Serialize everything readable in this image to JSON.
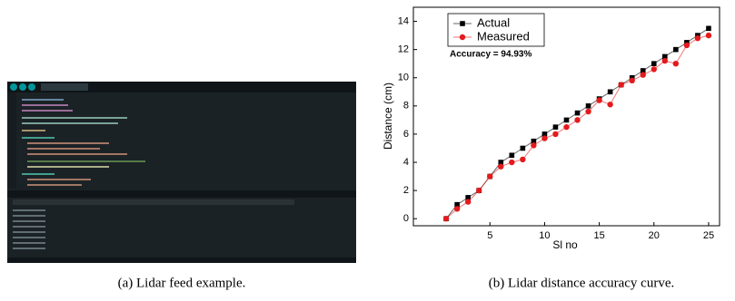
{
  "captions": [
    "(a) Lidar feed example.",
    "(b) Lidar distance accuracy curve."
  ],
  "chart_data": {
    "type": "line",
    "xlabel": "Sl no",
    "ylabel": "Distance (cm)",
    "annotation": "Accuracy = 94.93%",
    "x": [
      1,
      2,
      3,
      4,
      5,
      6,
      7,
      8,
      9,
      10,
      11,
      12,
      13,
      14,
      15,
      16,
      17,
      18,
      19,
      20,
      21,
      22,
      23,
      24,
      25
    ],
    "series": [
      {
        "name": "Actual",
        "color": "#000000",
        "marker": "square",
        "values": [
          0,
          1,
          1.5,
          2,
          3,
          4,
          4.5,
          5,
          5.5,
          6,
          6.5,
          7,
          7.5,
          8,
          8.5,
          9,
          9.5,
          10,
          10.5,
          11,
          11.5,
          12,
          12.5,
          13,
          13.5
        ]
      },
      {
        "name": "Measured",
        "color": "#e41a1c",
        "marker": "circle",
        "values": [
          0,
          0.7,
          1.2,
          2,
          3,
          3.7,
          4,
          4.2,
          5.2,
          5.7,
          6,
          6.5,
          7,
          7.6,
          8.4,
          8.1,
          9.5,
          9.8,
          10.2,
          10.6,
          11.2,
          11,
          12.3,
          12.8,
          13
        ]
      }
    ],
    "xlim": [
      -2,
      26
    ],
    "xticks": [
      5,
      10,
      15,
      20,
      25
    ],
    "ylim": [
      -0.5,
      15
    ],
    "yticks": [
      0,
      2,
      4,
      6,
      8,
      10,
      12,
      14
    ],
    "legend": "upper left",
    "grid": false
  }
}
